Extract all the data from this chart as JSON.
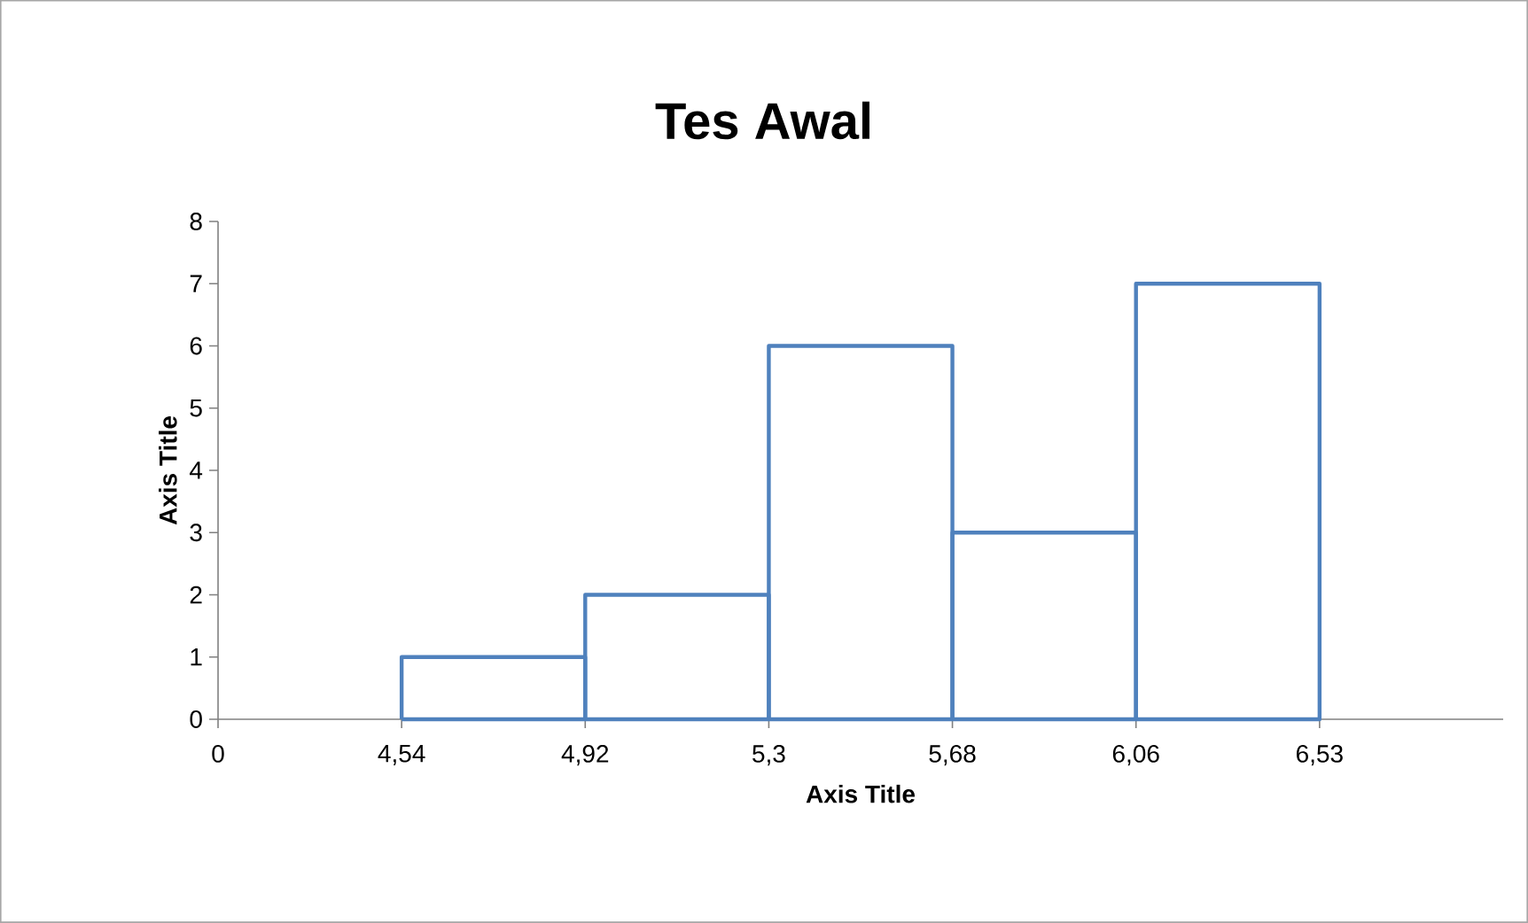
{
  "chart_data": {
    "type": "bar",
    "title": "Tes Awal",
    "xlabel": "Axis Title",
    "ylabel": "Axis Title",
    "categories": [
      "0",
      "4,54",
      "4,92",
      "5,3",
      "5,68",
      "6,06",
      "6,53"
    ],
    "values": [
      null,
      1,
      2,
      6,
      3,
      7,
      null
    ],
    "color": "#4f81bd",
    "ylim": [
      0,
      8
    ],
    "yticks": [
      0,
      1,
      2,
      3,
      4,
      5,
      6,
      7,
      8
    ]
  }
}
